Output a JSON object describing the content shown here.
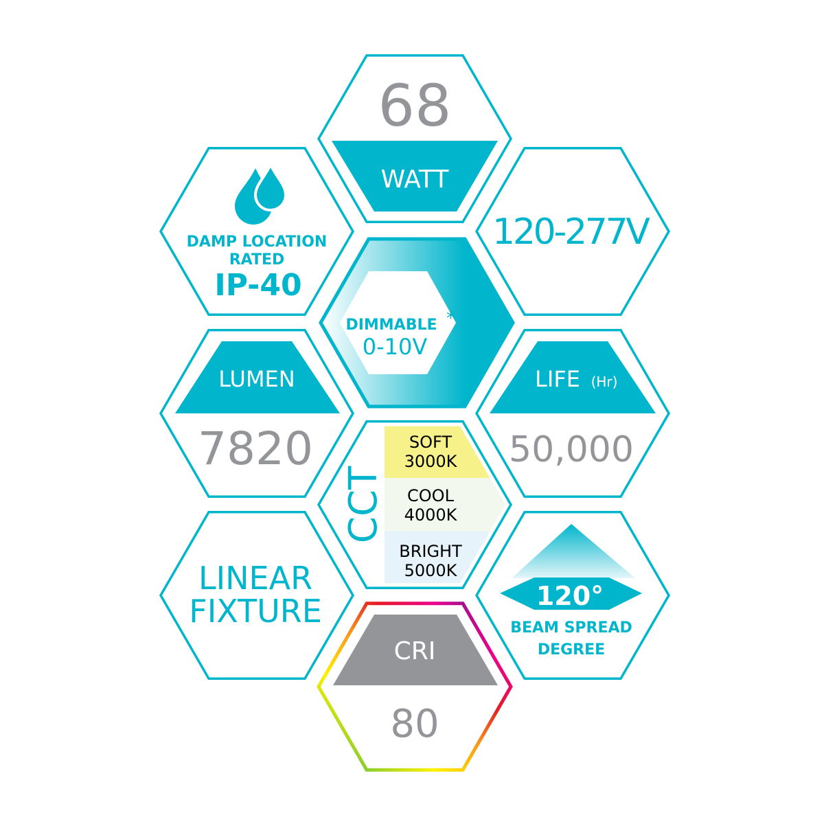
{
  "colors": {
    "accent": "#00b5cc",
    "gray": "#939598",
    "soft": "#f7f18a",
    "cool": "#f3f8ee",
    "bright": "#e6f3fa"
  },
  "watt": {
    "value": "68",
    "label": "WATT"
  },
  "voltage": {
    "value": "120-277V"
  },
  "damp": {
    "icon": "water-drops-icon",
    "line1": "DAMP LOCATION",
    "line2": "RATED",
    "rating": "IP-40"
  },
  "dimmable": {
    "label": "DIMMABLE",
    "asterisk": "*",
    "value": "0-10V"
  },
  "lumen": {
    "label": "LUMEN",
    "value": "7820"
  },
  "life": {
    "label": "LIFE",
    "unit": "(Hr)",
    "value": "50,000"
  },
  "cct": {
    "label": "CCT",
    "options": [
      {
        "name": "SOFT",
        "temp": "3000K"
      },
      {
        "name": "COOL",
        "temp": "4000K"
      },
      {
        "name": "BRIGHT",
        "temp": "5000K"
      }
    ]
  },
  "fixture": {
    "line1": "LINEAR",
    "line2": "FIXTURE"
  },
  "beam": {
    "value": "120°",
    "line1": "BEAM SPREAD",
    "line2": "DEGREE"
  },
  "cri": {
    "label": "CRI",
    "value": "80"
  }
}
